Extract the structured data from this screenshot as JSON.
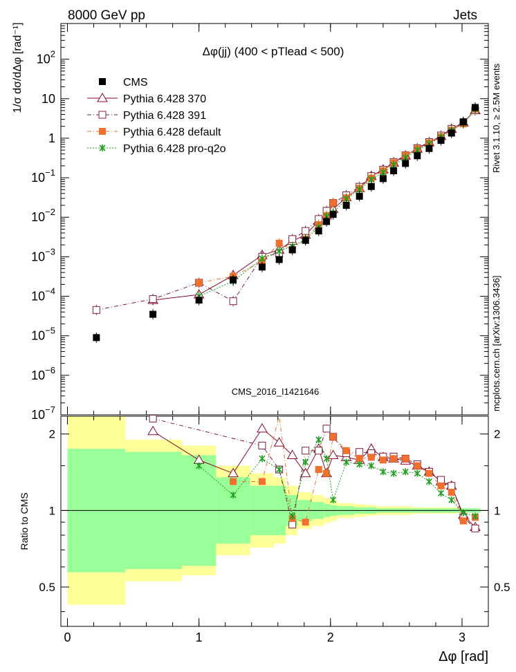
{
  "header": {
    "left": "8000 GeV pp",
    "right": "Jets"
  },
  "side": {
    "rivet": "Rivet 3.1.10, ≥ 2.5M events",
    "mcplots": "mcplots.cern.ch [arXiv:1306.3436]"
  },
  "watermark": "CMS_2016_I1421646",
  "chart_data": {
    "type": "scatter",
    "title": "Δφ(jj) (400 < pTlead <  500)",
    "ylabel_main": "1/σ dσ/dΔφ [rad⁻¹]",
    "ylabel_ratio": "Ratio to CMS",
    "xlabel": "Δφ [rad]",
    "xlim": [
      -0.05,
      3.2
    ],
    "ylim_main": [
      1e-07,
      800
    ],
    "ylim_ratio": [
      0.35,
      2.35
    ],
    "y_scale_main": "log",
    "y_scale_ratio": "log",
    "x_ticks": [
      0,
      1,
      2,
      3
    ],
    "y_ticks_main": [
      {
        "v": 1e-07,
        "base": "10",
        "exp": "−7"
      },
      {
        "v": 1e-06,
        "base": "10",
        "exp": "−6"
      },
      {
        "v": 1e-05,
        "base": "10",
        "exp": "−5"
      },
      {
        "v": 0.0001,
        "base": "10",
        "exp": "−4"
      },
      {
        "v": 0.001,
        "base": "10",
        "exp": "−3"
      },
      {
        "v": 0.01,
        "base": "10",
        "exp": "−2"
      },
      {
        "v": 0.1,
        "base": "10",
        "exp": "−1"
      },
      {
        "v": 1,
        "base": "1",
        "exp": ""
      },
      {
        "v": 10,
        "base": "10",
        "exp": ""
      },
      {
        "v": 100,
        "base": "10",
        "exp": "2"
      }
    ],
    "y_ticks_ratio": [
      "0.5",
      "1",
      "2"
    ],
    "legend_position": "top-left",
    "x": [
      0.22,
      0.65,
      1.0,
      1.26,
      1.48,
      1.61,
      1.71,
      1.81,
      1.91,
      1.97,
      2.02,
      2.12,
      2.22,
      2.31,
      2.4,
      2.48,
      2.57,
      2.66,
      2.75,
      2.84,
      2.92,
      3.01,
      3.1
    ],
    "x_edges": [
      0,
      0.44,
      0.87,
      1.13,
      1.39,
      1.57,
      1.66,
      1.75,
      1.86,
      1.95,
      2.0,
      2.05,
      2.18,
      2.26,
      2.35,
      2.44,
      2.53,
      2.62,
      2.71,
      2.79,
      2.88,
      2.97,
      3.05,
      3.14
    ],
    "series": [
      {
        "name": "CMS",
        "color": "#000000",
        "marker": "square-filled",
        "line": "none",
        "values": [
          9e-06,
          3.5e-05,
          8e-05,
          0.00026,
          0.00055,
          0.00085,
          0.0015,
          0.0026,
          0.0045,
          0.0078,
          0.0118,
          0.02,
          0.034,
          0.06,
          0.095,
          0.15,
          0.23,
          0.36,
          0.55,
          0.88,
          1.35,
          2.6,
          6.0
        ],
        "ratio_band_green": [
          1.75,
          1.7,
          1.65,
          1.35,
          1.25,
          1.25,
          1.15,
          1.1,
          1.08,
          1.06,
          1.05,
          1.04,
          1.03,
          1.03,
          1.02,
          1.02,
          1.02,
          1.02,
          1.02,
          1.02,
          1.02,
          1.02,
          1.02
        ],
        "ratio_band_yellow": [
          2.35,
          1.9,
          1.8,
          1.5,
          1.4,
          1.35,
          1.25,
          1.18,
          1.15,
          1.12,
          1.1,
          1.07,
          1.06,
          1.05,
          1.04,
          1.04,
          1.04,
          1.03,
          1.03,
          1.03,
          1.03,
          1.02,
          1.02
        ]
      },
      {
        "name": "Pythia 6.428 370",
        "color": "#8b0a28",
        "marker": "triangle-open",
        "line": "solid",
        "values": [
          null,
          8e-05,
          0.00011,
          0.00034,
          0.0011,
          0.0015,
          0.0025,
          0.0036,
          0.008,
          0.011,
          0.016,
          0.032,
          0.054,
          0.11,
          0.16,
          0.24,
          0.36,
          0.54,
          0.78,
          1.13,
          1.72,
          2.5,
          5.1
        ],
        "ratio": [
          null,
          2.05,
          1.58,
          1.4,
          2.1,
          1.85,
          1.65,
          1.4,
          1.75,
          1.4,
          1.65,
          1.62,
          1.58,
          1.75,
          1.62,
          1.6,
          1.57,
          1.5,
          1.42,
          1.3,
          1.25,
          0.96,
          0.86
        ]
      },
      {
        "name": "Pythia 6.428 391",
        "color": "#7a1c3c",
        "marker": "square-open",
        "line": "dashdot",
        "values": [
          4.5e-05,
          8.5e-05,
          0.00022,
          7.5e-05,
          0.001,
          0.0012,
          0.0028,
          0.0045,
          0.009,
          0.0145,
          0.023,
          0.036,
          0.059,
          0.11,
          0.16,
          0.25,
          0.37,
          0.56,
          0.8,
          1.17,
          1.72,
          2.45,
          5.1
        ],
        "ratio": [
          null,
          2.3,
          null,
          null,
          1.8,
          1.45,
          0.88,
          1.72,
          1.72,
          2.1,
          1.95,
          1.68,
          1.7,
          1.68,
          1.63,
          1.63,
          1.6,
          1.52,
          1.42,
          1.32,
          1.25,
          0.94,
          0.85
        ]
      },
      {
        "name": "Pythia 6.428 default",
        "color": "#f07030",
        "marker": "square-filled",
        "line": "dashdot",
        "values": [
          null,
          null,
          0.00022,
          0.00032,
          0.00075,
          0.0022,
          0.0015,
          0.0028,
          0.0065,
          0.011,
          0.023,
          0.031,
          0.054,
          0.098,
          0.15,
          0.24,
          0.37,
          0.54,
          0.76,
          1.1,
          1.6,
          2.3,
          5.4
        ],
        "ratio": [
          null,
          null,
          null,
          1.3,
          1.3,
          2.35,
          0.93,
          0.9,
          1.45,
          1.4,
          1.95,
          1.72,
          1.6,
          1.62,
          1.58,
          1.6,
          1.6,
          1.5,
          1.4,
          1.25,
          1.18,
          0.91,
          0.94
        ]
      },
      {
        "name": "Pythia 6.428 pro-q2o",
        "color": "#1e9e1e",
        "marker": "star",
        "line": "dotted",
        "values": [
          null,
          null,
          0.0001,
          0.00024,
          0.0009,
          0.0014,
          0.0018,
          0.0028,
          0.0055,
          0.0105,
          0.013,
          0.029,
          0.05,
          0.09,
          0.135,
          0.21,
          0.32,
          0.5,
          0.72,
          1.05,
          1.55,
          2.4,
          5.5
        ],
        "ratio": [
          null,
          null,
          1.5,
          1.15,
          1.6,
          1.45,
          0.95,
          1.55,
          1.9,
          1.6,
          1.1,
          1.55,
          1.52,
          1.5,
          1.42,
          1.4,
          1.42,
          1.4,
          1.3,
          1.17,
          1.1,
          0.98,
          0.95
        ]
      }
    ]
  }
}
